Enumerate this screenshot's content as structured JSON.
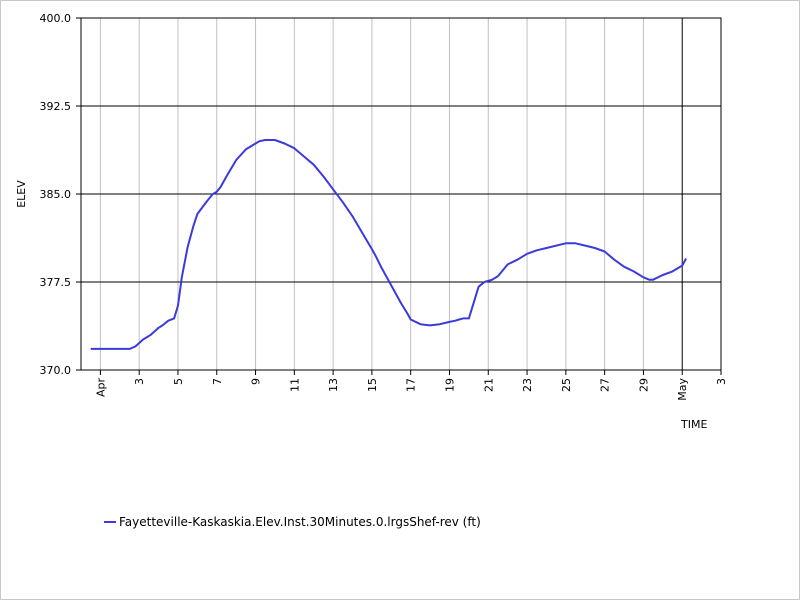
{
  "chart_data": {
    "type": "line",
    "xlabel": "TIME",
    "ylabel": "ELEV",
    "xlim_day_of_april": [
      0,
      33
    ],
    "ylim": [
      370.0,
      400.0
    ],
    "y_ticks": [
      "370.0",
      "377.5",
      "385.0",
      "392.5",
      "400.0"
    ],
    "y_tick_values": [
      370.0,
      377.5,
      385.0,
      392.5,
      400.0
    ],
    "x_ticks": [
      {
        "day": 1,
        "label": "Apr"
      },
      {
        "day": 3,
        "label": "3"
      },
      {
        "day": 5,
        "label": "5"
      },
      {
        "day": 7,
        "label": "7"
      },
      {
        "day": 9,
        "label": "9"
      },
      {
        "day": 11,
        "label": "11"
      },
      {
        "day": 13,
        "label": "13"
      },
      {
        "day": 15,
        "label": "15"
      },
      {
        "day": 17,
        "label": "17"
      },
      {
        "day": 19,
        "label": "19"
      },
      {
        "day": 21,
        "label": "21"
      },
      {
        "day": 23,
        "label": "23"
      },
      {
        "day": 25,
        "label": "25"
      },
      {
        "day": 27,
        "label": "27"
      },
      {
        "day": 29,
        "label": "29"
      },
      {
        "day": 31,
        "label": "May"
      },
      {
        "day": 33,
        "label": "3"
      }
    ],
    "series": [
      {
        "name": "Fayetteville-Kaskaskia.Elev.Inst.30Minutes.0.lrgsShef-rev (ft)",
        "color": "#3b3bdb",
        "x_day_of_april": [
          0.5,
          1.0,
          2.0,
          2.5,
          2.8,
          3.2,
          3.6,
          4.0,
          4.2,
          4.5,
          4.8,
          5.0,
          5.2,
          5.5,
          5.8,
          6.0,
          6.5,
          6.8,
          7.0,
          7.2,
          7.5,
          8.0,
          8.5,
          9.0,
          9.2,
          9.5,
          10.0,
          10.5,
          11.0,
          11.5,
          12.0,
          12.5,
          13.0,
          13.5,
          14.0,
          14.5,
          15.0,
          15.2,
          15.5,
          16.0,
          16.5,
          16.8,
          17.0,
          17.5,
          18.0,
          18.5,
          19.0,
          19.3,
          19.5,
          19.7,
          20.0,
          20.5,
          20.8,
          21.0,
          21.2,
          21.5,
          22.0,
          22.5,
          23.0,
          23.5,
          24.0,
          25.0,
          25.5,
          26.0,
          26.5,
          27.0,
          27.5,
          28.0,
          28.5,
          29.0,
          29.3,
          29.5,
          30.0,
          30.5,
          31.0,
          31.2
        ],
        "values": [
          371.8,
          371.8,
          371.8,
          371.8,
          372.0,
          372.6,
          373.0,
          373.6,
          373.8,
          374.2,
          374.4,
          375.5,
          377.9,
          380.5,
          382.3,
          383.3,
          384.4,
          385.0,
          385.2,
          385.6,
          386.5,
          387.9,
          388.8,
          389.3,
          389.5,
          389.6,
          389.6,
          389.3,
          388.9,
          388.2,
          387.5,
          386.5,
          385.4,
          384.3,
          383.1,
          381.7,
          380.3,
          379.7,
          378.7,
          377.2,
          375.7,
          374.9,
          374.3,
          373.9,
          373.8,
          373.9,
          374.1,
          374.2,
          374.3,
          374.4,
          374.4,
          377.1,
          377.5,
          377.6,
          377.7,
          378.0,
          379.0,
          379.4,
          379.9,
          380.2,
          380.4,
          380.8,
          380.8,
          380.6,
          380.4,
          380.1,
          379.4,
          378.8,
          378.4,
          377.9,
          377.7,
          377.7,
          378.1,
          378.4,
          378.9,
          379.5
        ]
      }
    ],
    "grid": true,
    "legend_position": "bottom-left"
  }
}
